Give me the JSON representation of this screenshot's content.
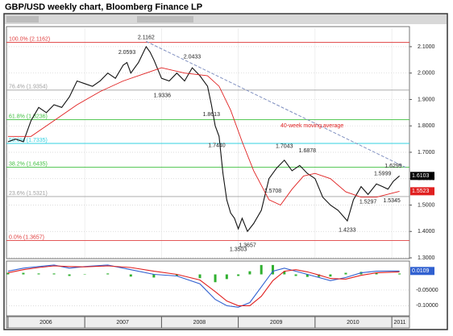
{
  "chart_data": [
    {
      "type": "line",
      "title": "GBP/USD weekly chart, Bloomberg Finance LP",
      "xlim": [
        2005.98,
        2011.23
      ],
      "xticks": [
        {
          "value": 2006,
          "label": "2006"
        },
        {
          "value": 2007,
          "label": "2007"
        },
        {
          "value": 2008,
          "label": "2008"
        },
        {
          "value": 2009,
          "label": "2009"
        },
        {
          "value": 2010,
          "label": "2010"
        },
        {
          "value": 2011,
          "label": "2011"
        }
      ],
      "ylim": [
        1.3,
        2.17
      ],
      "yticks": [
        {
          "value": 2.1,
          "label": "2.1000"
        },
        {
          "value": 2.0,
          "label": "2.0000"
        },
        {
          "value": 1.9,
          "label": "1.9000"
        },
        {
          "value": 1.8,
          "label": "1.8000"
        },
        {
          "value": 1.7,
          "label": "1.7000"
        },
        {
          "value": 1.6,
          "label": "1.6000"
        },
        {
          "value": 1.5,
          "label": "1.5000"
        },
        {
          "value": 1.4,
          "label": "1.4000"
        },
        {
          "value": 1.3,
          "label": "1.3000"
        }
      ],
      "grid": true,
      "series": [
        {
          "color": "#111111",
          "x": [
            2006.0,
            2006.1,
            2006.2,
            2006.3,
            2006.4,
            2006.5,
            2006.6,
            2006.7,
            2006.8,
            2006.9,
            2007.0,
            2007.1,
            2007.2,
            2007.3,
            2007.4,
            2007.5,
            2007.55,
            2007.6,
            2007.7,
            2007.8,
            2007.85,
            2007.9,
            2008.0,
            2008.1,
            2008.2,
            2008.3,
            2008.4,
            2008.5,
            2008.6,
            2008.65,
            2008.7,
            2008.75,
            2008.8,
            2008.85,
            2008.9,
            2008.95,
            2009.0,
            2009.05,
            2009.12,
            2009.2,
            2009.3,
            2009.4,
            2009.5,
            2009.6,
            2009.7,
            2009.8,
            2009.9,
            2010.0,
            2010.1,
            2010.2,
            2010.3,
            2010.42,
            2010.5,
            2010.6,
            2010.69,
            2010.8,
            2010.88,
            2010.95,
            2011.02,
            2011.1
          ],
          "values": [
            1.74,
            1.75,
            1.74,
            1.82,
            1.87,
            1.85,
            1.88,
            1.87,
            1.91,
            1.97,
            1.96,
            1.95,
            1.97,
            2.0,
            1.98,
            2.03,
            2.04,
            2.0,
            2.04,
            2.1,
            2.08,
            2.05,
            1.98,
            1.97,
            2.0,
            1.97,
            2.02,
            1.99,
            1.95,
            1.88,
            1.8,
            1.76,
            1.62,
            1.52,
            1.47,
            1.45,
            1.41,
            1.45,
            1.4,
            1.43,
            1.48,
            1.6,
            1.64,
            1.67,
            1.63,
            1.65,
            1.62,
            1.6,
            1.53,
            1.5,
            1.48,
            1.44,
            1.52,
            1.57,
            1.54,
            1.58,
            1.57,
            1.56,
            1.59,
            1.6103
          ],
          "last_box": "#000000"
        },
        {
          "color": "#e02020",
          "x": [
            2006.0,
            2006.3,
            2006.6,
            2006.9,
            2007.2,
            2007.5,
            2007.8,
            2008.0,
            2008.3,
            2008.6,
            2008.75,
            2008.9,
            2009.05,
            2009.2,
            2009.4,
            2009.55,
            2009.7,
            2009.85,
            2010.0,
            2010.2,
            2010.4,
            2010.6,
            2010.8,
            2011.1
          ],
          "values": [
            1.76,
            1.76,
            1.82,
            1.88,
            1.93,
            1.97,
            2.0,
            2.02,
            2.0,
            1.99,
            1.95,
            1.86,
            1.74,
            1.63,
            1.52,
            1.5,
            1.56,
            1.61,
            1.62,
            1.6,
            1.55,
            1.53,
            1.53,
            1.5523
          ],
          "last_box": "#e02020"
        }
      ],
      "trendline": {
        "color": "#8090c0",
        "x": [
          2007.8,
          2011.2
        ],
        "y": [
          2.12,
          1.64
        ]
      },
      "levels": [
        {
          "value": 2.1162,
          "label": "100.0% (2.1162)",
          "color": "#e04040"
        },
        {
          "value": 1.9354,
          "label": "76.4% (1.9354)",
          "color": "#a0a0a0"
        },
        {
          "value": 1.8236,
          "label": "61.8% (1.8236)",
          "color": "#40c040"
        },
        {
          "value": 1.7335,
          "label": "50.0% (1.7335)",
          "color": "#30d0e0"
        },
        {
          "value": 1.6435,
          "label": "38.2% (1.6435)",
          "color": "#40c040"
        },
        {
          "value": 1.5321,
          "label": "23.6% (1.5321)",
          "color": "#a0a0a0"
        },
        {
          "value": 1.3657,
          "label": "0.0% (1.3657)",
          "color": "#e04040"
        }
      ],
      "annotations": [
        {
          "x": 2007.8,
          "y": 2.1162,
          "label": "2.1162"
        },
        {
          "x": 2007.55,
          "y": 2.0593,
          "label": "2.0593"
        },
        {
          "x": 2008.4,
          "y": 2.0433,
          "label": "2.0433"
        },
        {
          "x": 2008.01,
          "y": 1.9336,
          "label": "1.9336"
        },
        {
          "x": 2008.65,
          "y": 1.8613,
          "label": "1.8613"
        },
        {
          "x": 2008.72,
          "y": 1.744,
          "label": "1.7440"
        },
        {
          "x": 2009.6,
          "y": 1.7043,
          "label": "1.7043"
        },
        {
          "x": 2009.9,
          "y": 1.6878,
          "label": "1.6878"
        },
        {
          "x": 2009.45,
          "y": 1.5708,
          "label": "1.5708"
        },
        {
          "x": 2009.0,
          "y": 1.3503,
          "label": "1.3503"
        },
        {
          "x": 2009.12,
          "y": 1.3657,
          "label": "1.3657"
        },
        {
          "x": 2010.42,
          "y": 1.4233,
          "label": "1.4233"
        },
        {
          "x": 2010.69,
          "y": 1.5297,
          "label": "1.5297"
        },
        {
          "x": 2010.88,
          "y": 1.5999,
          "label": "1.5999"
        },
        {
          "x": 2011.02,
          "y": 1.6299,
          "label": "1.6299"
        },
        {
          "x": 2011.0,
          "y": 1.5345,
          "label": "1.5345"
        }
      ],
      "ma_label": {
        "x": 2009.55,
        "y": 1.8,
        "label": "40-week moving average"
      }
    },
    {
      "type": "macd",
      "xlim": [
        2005.98,
        2011.23
      ],
      "ylim": [
        -0.13,
        0.04
      ],
      "yticks": [
        {
          "value": -0.05,
          "label": "-0.05000"
        },
        {
          "value": -0.1,
          "label": "-0.10000"
        }
      ],
      "x": [
        2006.0,
        2006.2,
        2006.4,
        2006.6,
        2006.8,
        2007.0,
        2007.3,
        2007.6,
        2007.9,
        2008.2,
        2008.5,
        2008.7,
        2008.85,
        2009.0,
        2009.15,
        2009.3,
        2009.45,
        2009.6,
        2009.75,
        2009.9,
        2010.05,
        2010.2,
        2010.4,
        2010.6,
        2010.8,
        2011.1
      ],
      "series": [
        {
          "color": "#3060d0",
          "values": [
            0.01,
            0.02,
            0.025,
            0.03,
            0.02,
            0.025,
            0.03,
            0.015,
            0.0,
            -0.005,
            -0.03,
            -0.08,
            -0.1,
            -0.105,
            -0.09,
            -0.04,
            0.01,
            0.02,
            0.01,
            0.0,
            -0.01,
            -0.02,
            -0.01,
            0.005,
            0.01,
            0.0109
          ],
          "last_box": "#3060d0"
        },
        {
          "color": "#e02020",
          "values": [
            0.005,
            0.015,
            0.022,
            0.027,
            0.025,
            0.024,
            0.027,
            0.022,
            0.01,
            0.0,
            -0.018,
            -0.055,
            -0.085,
            -0.1,
            -0.1,
            -0.07,
            -0.02,
            0.01,
            0.015,
            0.008,
            -0.002,
            -0.013,
            -0.015,
            -0.003,
            0.005,
            0.008
          ]
        }
      ],
      "histogram": {
        "color": "#30b030",
        "values": [
          0.005,
          0.005,
          0.003,
          0.003,
          -0.005,
          0.001,
          0.003,
          -0.007,
          -0.01,
          -0.005,
          -0.012,
          -0.025,
          -0.015,
          -0.005,
          0.01,
          0.03,
          0.03,
          0.01,
          -0.005,
          -0.008,
          -0.008,
          -0.007,
          0.005,
          0.008,
          0.005,
          0.0029
        ]
      }
    }
  ]
}
